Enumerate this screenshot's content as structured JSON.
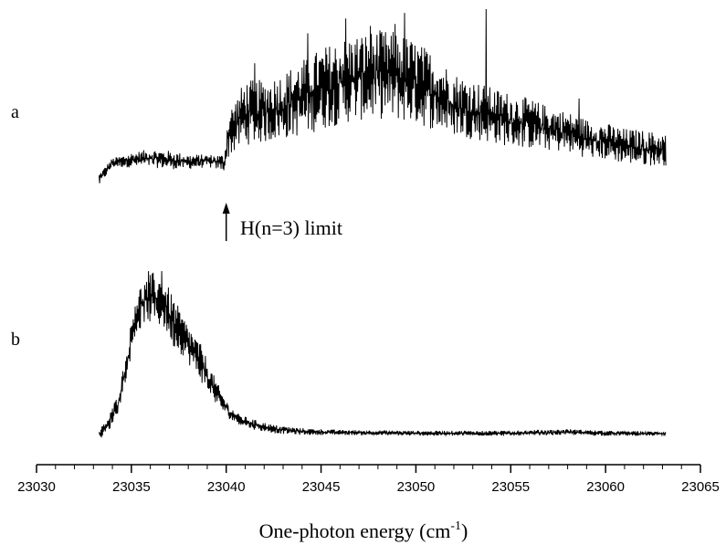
{
  "chart_data": {
    "type": "line",
    "xlabel": {
      "text": "One-photon energy (cm",
      "sup": "-1",
      "close": ")"
    },
    "xlim": [
      23030,
      23065
    ],
    "xticks_major": [
      23030,
      23035,
      23040,
      23045,
      23050,
      23055,
      23060,
      23065
    ],
    "xtick_minor_step": 1,
    "grid": false,
    "panels": [
      {
        "label": "a",
        "annotation": {
          "text": "H(n=3) limit",
          "x": 23040
        },
        "envelope": [
          {
            "x": 23033.3,
            "lo": 0.05,
            "hi": 0.12
          },
          {
            "x": 23034.0,
            "lo": 0.15,
            "hi": 0.2
          },
          {
            "x": 23035.0,
            "lo": 0.15,
            "hi": 0.23
          },
          {
            "x": 23036.0,
            "lo": 0.15,
            "hi": 0.25
          },
          {
            "x": 23037.0,
            "lo": 0.14,
            "hi": 0.24
          },
          {
            "x": 23038.0,
            "lo": 0.14,
            "hi": 0.22
          },
          {
            "x": 23039.0,
            "lo": 0.15,
            "hi": 0.22
          },
          {
            "x": 23039.9,
            "lo": 0.13,
            "hi": 0.22
          },
          {
            "x": 23040.1,
            "lo": 0.2,
            "hi": 0.45
          },
          {
            "x": 23041.0,
            "lo": 0.27,
            "hi": 0.62
          },
          {
            "x": 23042.0,
            "lo": 0.28,
            "hi": 0.62
          },
          {
            "x": 23043.0,
            "lo": 0.3,
            "hi": 0.66
          },
          {
            "x": 23044.0,
            "lo": 0.32,
            "hi": 0.73
          },
          {
            "x": 23045.0,
            "lo": 0.35,
            "hi": 0.79
          },
          {
            "x": 23046.0,
            "lo": 0.38,
            "hi": 0.84
          },
          {
            "x": 23047.0,
            "lo": 0.4,
            "hi": 0.87
          },
          {
            "x": 23048.0,
            "lo": 0.41,
            "hi": 0.89
          },
          {
            "x": 23049.0,
            "lo": 0.4,
            "hi": 0.88
          },
          {
            "x": 23050.0,
            "lo": 0.38,
            "hi": 0.83
          },
          {
            "x": 23051.0,
            "lo": 0.35,
            "hi": 0.76
          },
          {
            "x": 23052.0,
            "lo": 0.32,
            "hi": 0.66
          },
          {
            "x": 23053.0,
            "lo": 0.3,
            "hi": 0.62
          },
          {
            "x": 23054.0,
            "lo": 0.28,
            "hi": 0.58
          },
          {
            "x": 23055.0,
            "lo": 0.26,
            "hi": 0.55
          },
          {
            "x": 23056.0,
            "lo": 0.25,
            "hi": 0.52
          },
          {
            "x": 23057.0,
            "lo": 0.24,
            "hi": 0.48
          },
          {
            "x": 23058.0,
            "lo": 0.23,
            "hi": 0.45
          },
          {
            "x": 23059.0,
            "lo": 0.2,
            "hi": 0.41
          },
          {
            "x": 23060.0,
            "lo": 0.19,
            "hi": 0.39
          },
          {
            "x": 23061.0,
            "lo": 0.17,
            "hi": 0.36
          },
          {
            "x": 23062.0,
            "lo": 0.16,
            "hi": 0.35
          },
          {
            "x": 23063.2,
            "lo": 0.16,
            "hi": 0.33
          }
        ],
        "spikes": [
          {
            "x": 23041.5,
            "y": 0.71
          },
          {
            "x": 23044.3,
            "y": 0.87
          },
          {
            "x": 23046.3,
            "y": 0.95
          },
          {
            "x": 23047.6,
            "y": 0.91
          },
          {
            "x": 23048.9,
            "y": 0.92
          },
          {
            "x": 23049.4,
            "y": 0.98
          },
          {
            "x": 23053.7,
            "y": 1.0
          },
          {
            "x": 23058.6,
            "y": 0.52
          }
        ]
      },
      {
        "label": "b",
        "envelope": [
          {
            "x": 23033.3,
            "lo": 0.0,
            "hi": 0.06
          },
          {
            "x": 23033.8,
            "lo": 0.05,
            "hi": 0.14
          },
          {
            "x": 23034.3,
            "lo": 0.16,
            "hi": 0.28
          },
          {
            "x": 23034.8,
            "lo": 0.4,
            "hi": 0.55
          },
          {
            "x": 23035.2,
            "lo": 0.6,
            "hi": 0.87
          },
          {
            "x": 23035.7,
            "lo": 0.7,
            "hi": 0.95
          },
          {
            "x": 23036.2,
            "lo": 0.68,
            "hi": 1.0
          },
          {
            "x": 23036.7,
            "lo": 0.66,
            "hi": 0.96
          },
          {
            "x": 23037.2,
            "lo": 0.55,
            "hi": 0.85
          },
          {
            "x": 23037.7,
            "lo": 0.5,
            "hi": 0.74
          },
          {
            "x": 23038.2,
            "lo": 0.42,
            "hi": 0.65
          },
          {
            "x": 23038.7,
            "lo": 0.34,
            "hi": 0.56
          },
          {
            "x": 23039.2,
            "lo": 0.25,
            "hi": 0.42
          },
          {
            "x": 23039.7,
            "lo": 0.18,
            "hi": 0.3
          },
          {
            "x": 23040.2,
            "lo": 0.12,
            "hi": 0.2
          },
          {
            "x": 23040.7,
            "lo": 0.09,
            "hi": 0.15
          },
          {
            "x": 23041.5,
            "lo": 0.06,
            "hi": 0.12
          },
          {
            "x": 23042.5,
            "lo": 0.04,
            "hi": 0.09
          },
          {
            "x": 23044.0,
            "lo": 0.03,
            "hi": 0.07
          },
          {
            "x": 23046.0,
            "lo": 0.03,
            "hi": 0.06
          },
          {
            "x": 23050.0,
            "lo": 0.025,
            "hi": 0.055
          },
          {
            "x": 23055.0,
            "lo": 0.025,
            "hi": 0.055
          },
          {
            "x": 23058.0,
            "lo": 0.03,
            "hi": 0.065
          },
          {
            "x": 23060.0,
            "lo": 0.025,
            "hi": 0.055
          },
          {
            "x": 23063.2,
            "lo": 0.025,
            "hi": 0.05
          }
        ],
        "spikes": [
          {
            "x": 23035.9,
            "y": 1.0
          },
          {
            "x": 23036.6,
            "y": 1.0
          }
        ]
      }
    ]
  }
}
